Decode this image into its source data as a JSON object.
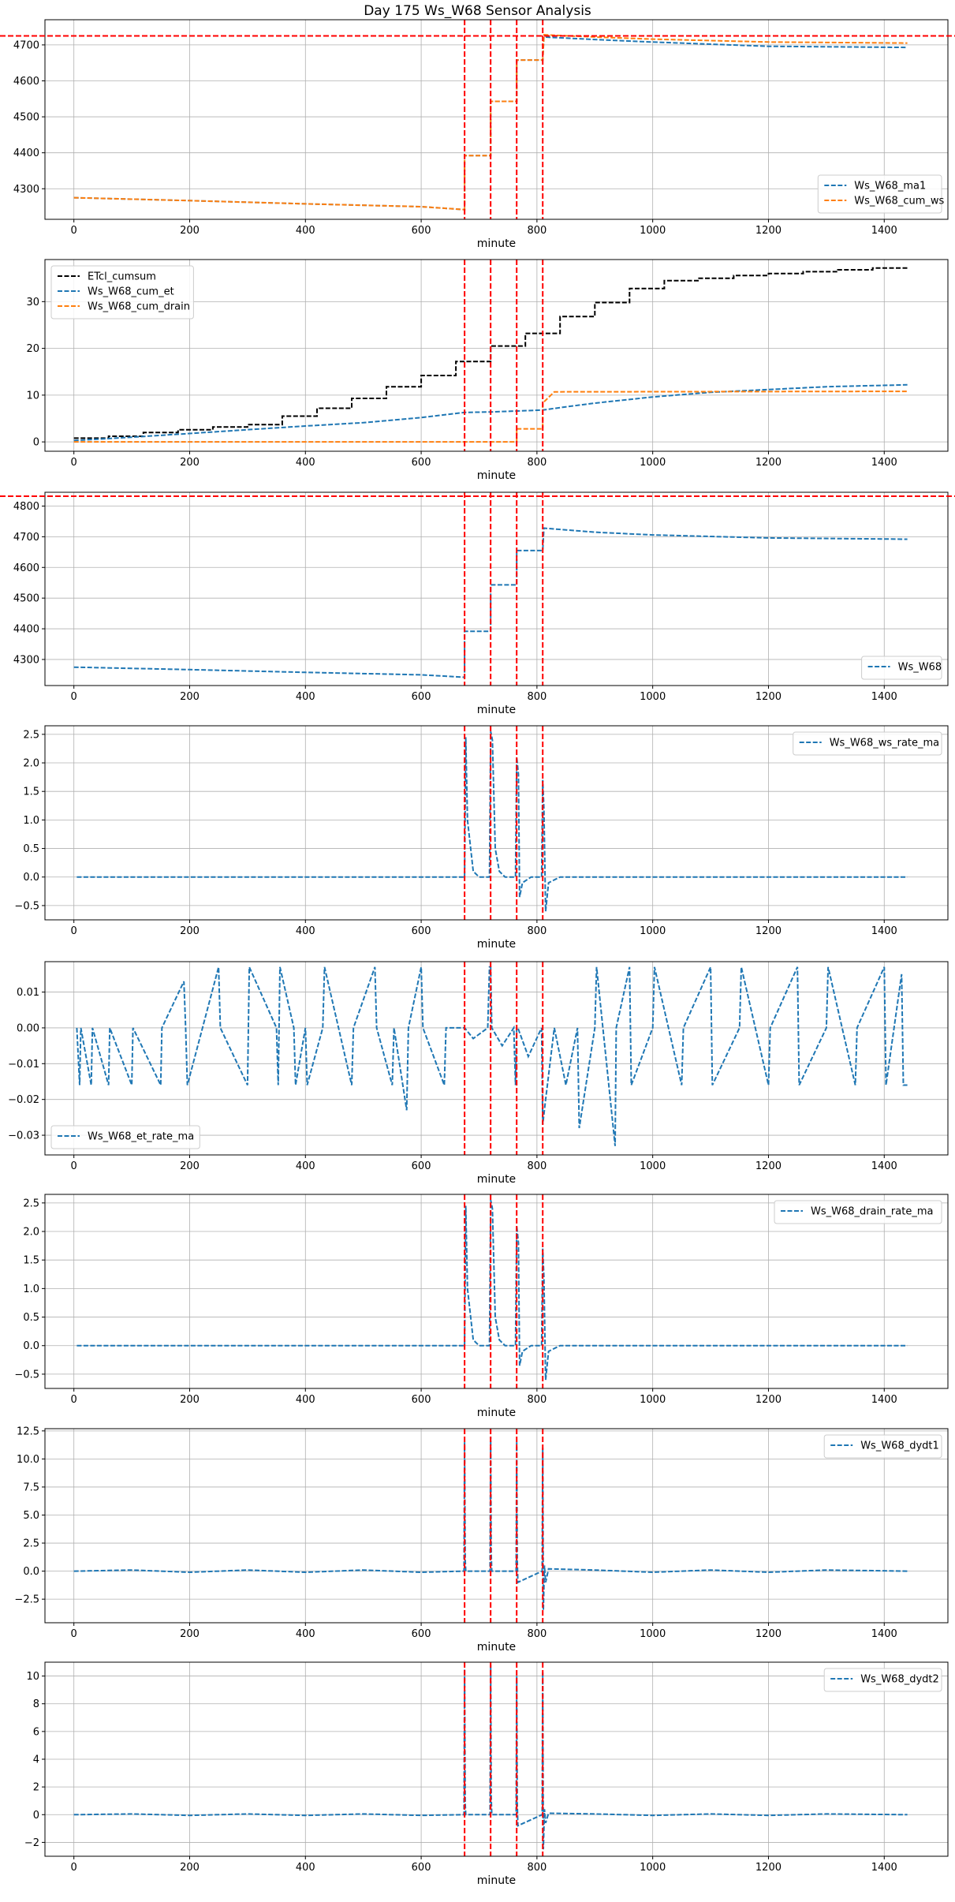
{
  "figure": {
    "title": "Day 175 Ws_W68 Sensor Analysis",
    "xlabel": "minute"
  },
  "colors": {
    "blue": "#1f77b4",
    "orange": "#ff7f0e",
    "black": "#000000",
    "red": "#ff0000",
    "grid": "#b0b0b0"
  },
  "chart_data": [
    {
      "type": "line",
      "xlabel": "minute",
      "xlim": [
        -50,
        1510
      ],
      "ylim": [
        4215,
        4770
      ],
      "xticks": [
        0,
        200,
        400,
        600,
        800,
        1000,
        1200,
        1400
      ],
      "yticks": [
        4300,
        4400,
        4500,
        4600,
        4700
      ],
      "grid": true,
      "legend": "lower-right",
      "vlines": [
        675,
        720,
        765,
        810
      ],
      "hlines": [
        4725
      ],
      "series": [
        {
          "name": "Ws_W68_ma1",
          "color": "#1f77b4",
          "style": "dashed",
          "x": [
            0,
            200,
            400,
            600,
            675,
            675,
            720,
            720,
            765,
            765,
            810,
            812,
            900,
            1000,
            1200,
            1440
          ],
          "y": [
            4275,
            4267,
            4258,
            4250,
            4242,
            4392,
            4392,
            4543,
            4543,
            4658,
            4658,
            4722,
            4715,
            4708,
            4696,
            4693
          ]
        },
        {
          "name": "Ws_W68_cum_ws",
          "color": "#ff7f0e",
          "style": "dashed",
          "x": [
            0,
            200,
            400,
            600,
            675,
            675,
            720,
            720,
            765,
            765,
            810,
            812,
            900,
            1000,
            1200,
            1440
          ],
          "y": [
            4275,
            4267,
            4258,
            4250,
            4242,
            4392,
            4392,
            4543,
            4543,
            4658,
            4658,
            4728,
            4722,
            4716,
            4708,
            4705
          ]
        }
      ]
    },
    {
      "type": "line",
      "xlabel": "minute",
      "xlim": [
        -50,
        1510
      ],
      "ylim": [
        -2,
        39
      ],
      "xticks": [
        0,
        200,
        400,
        600,
        800,
        1000,
        1200,
        1400
      ],
      "yticks": [
        0,
        10,
        20,
        30
      ],
      "grid": true,
      "legend": "upper-left",
      "vlines": [
        675,
        720,
        765,
        810
      ],
      "hlines": [],
      "series": [
        {
          "name": "ETcl_cumsum",
          "color": "#000000",
          "style": "dashed",
          "step": true,
          "x": [
            0,
            60,
            120,
            180,
            240,
            300,
            360,
            420,
            480,
            540,
            600,
            660,
            720,
            780,
            840,
            900,
            960,
            1020,
            1080,
            1140,
            1200,
            1260,
            1320,
            1380,
            1440
          ],
          "y": [
            0.8,
            1.2,
            2.0,
            2.6,
            3.2,
            3.7,
            5.5,
            7.2,
            9.3,
            11.8,
            14.2,
            17.2,
            20.5,
            23.2,
            26.8,
            29.8,
            32.8,
            34.5,
            35.0,
            35.6,
            36.0,
            36.4,
            36.8,
            37.2,
            37.5
          ]
        },
        {
          "name": "Ws_W68_cum_et",
          "color": "#1f77b4",
          "style": "dashed",
          "x": [
            0,
            100,
            200,
            300,
            400,
            500,
            600,
            675,
            720,
            765,
            810,
            850,
            900,
            1000,
            1100,
            1200,
            1300,
            1440
          ],
          "y": [
            0.3,
            1.0,
            1.8,
            2.6,
            3.4,
            4.1,
            5.2,
            6.3,
            6.4,
            6.6,
            6.8,
            7.5,
            8.3,
            9.6,
            10.6,
            11.2,
            11.8,
            12.2
          ]
        },
        {
          "name": "Ws_W68_cum_drain",
          "color": "#ff7f0e",
          "style": "dashed",
          "x": [
            0,
            675,
            675,
            720,
            720,
            765,
            765,
            810,
            810,
            830,
            1440
          ],
          "y": [
            0,
            0,
            0,
            0,
            0,
            0,
            2.8,
            2.8,
            8.3,
            10.7,
            10.8
          ]
        }
      ]
    },
    {
      "type": "line",
      "xlabel": "minute",
      "xlim": [
        -50,
        1510
      ],
      "ylim": [
        4215,
        4845
      ],
      "xticks": [
        0,
        200,
        400,
        600,
        800,
        1000,
        1200,
        1400
      ],
      "yticks": [
        4300,
        4400,
        4500,
        4600,
        4700,
        4800
      ],
      "grid": true,
      "legend": "lower-right",
      "vlines": [
        675,
        720,
        765,
        810
      ],
      "hlines": [
        4832
      ],
      "series": [
        {
          "name": "Ws_W68",
          "color": "#1f77b4",
          "style": "dashed",
          "x": [
            0,
            200,
            400,
            600,
            675,
            675,
            720,
            720,
            765,
            765,
            810,
            812,
            900,
            1000,
            1200,
            1440
          ],
          "y": [
            4275,
            4267,
            4258,
            4250,
            4242,
            4392,
            4392,
            4543,
            4543,
            4655,
            4655,
            4728,
            4715,
            4706,
            4696,
            4692
          ]
        }
      ]
    },
    {
      "type": "line",
      "xlabel": "minute",
      "xlim": [
        -50,
        1510
      ],
      "ylim": [
        -0.75,
        2.65
      ],
      "xticks": [
        0,
        200,
        400,
        600,
        800,
        1000,
        1200,
        1400
      ],
      "yticks": [
        -0.5,
        0.0,
        0.5,
        1.0,
        1.5,
        2.0,
        2.5
      ],
      "grid": true,
      "legend": "upper-right",
      "vlines": [
        675,
        720,
        765,
        810
      ],
      "hlines": [],
      "series": [
        {
          "name": "Ws_W68_ws_rate_ma",
          "color": "#1f77b4",
          "style": "dashed",
          "x": [
            5,
            675,
            677,
            680,
            690,
            700,
            718,
            720,
            723,
            728,
            735,
            745,
            763,
            765,
            768,
            770,
            775,
            790,
            808,
            810,
            812,
            815,
            820,
            840,
            1000,
            1200,
            1440
          ],
          "y": [
            0,
            0,
            2.45,
            1.0,
            0.1,
            0.0,
            0.0,
            2.55,
            2.4,
            0.5,
            0.1,
            0.0,
            0.0,
            2.1,
            1.8,
            -0.35,
            -0.1,
            0.0,
            0.0,
            1.7,
            1.2,
            -0.6,
            -0.1,
            0.0,
            0.0,
            0.0,
            0.0
          ]
        }
      ]
    },
    {
      "type": "line",
      "xlabel": "minute",
      "xlim": [
        -50,
        1510
      ],
      "ylim": [
        -0.0355,
        0.0185
      ],
      "xticks": [
        0,
        200,
        400,
        600,
        800,
        1000,
        1200,
        1400
      ],
      "yticks": [
        -0.03,
        -0.02,
        -0.01,
        0.0,
        0.01
      ],
      "grid": true,
      "legend": "lower-left",
      "vlines": [
        675,
        720,
        765,
        810
      ],
      "hlines": [],
      "series": [
        {
          "name": "Ws_W68_et_rate_ma",
          "color": "#1f77b4",
          "style": "dashed",
          "x": [
            5,
            10,
            12,
            30,
            32,
            60,
            62,
            100,
            102,
            150,
            152,
            190,
            193,
            196,
            250,
            253,
            300,
            303,
            350,
            353,
            356,
            380,
            383,
            400,
            403,
            430,
            433,
            480,
            483,
            520,
            523,
            550,
            553,
            575,
            578,
            600,
            603,
            640,
            643,
            675,
            690,
            715,
            718,
            720,
            722,
            740,
            760,
            763,
            765,
            767,
            785,
            808,
            810,
            815,
            830,
            850,
            870,
            873,
            900,
            903,
            935,
            937,
            960,
            963,
            1000,
            1003,
            1050,
            1053,
            1100,
            1103,
            1150,
            1153,
            1200,
            1203,
            1250,
            1253,
            1300,
            1303,
            1350,
            1353,
            1400,
            1403,
            1430,
            1433,
            1440
          ],
          "y": [
            0,
            -0.016,
            0,
            -0.016,
            0,
            -0.016,
            0,
            -0.016,
            0,
            -0.016,
            0,
            0.013,
            0,
            -0.016,
            0.017,
            0,
            -0.016,
            0.017,
            0,
            -0.016,
            0.017,
            0,
            -0.016,
            0,
            -0.016,
            0,
            0.017,
            -0.016,
            0,
            0.017,
            0,
            -0.016,
            0,
            -0.023,
            0,
            0.017,
            0,
            -0.016,
            0,
            0,
            -0.003,
            0,
            0.017,
            0.017,
            0,
            -0.005,
            0,
            -0.016,
            0,
            0,
            -0.008,
            0,
            -0.027,
            -0.02,
            0,
            -0.016,
            0,
            -0.028,
            0,
            0.017,
            -0.033,
            0,
            0.017,
            -0.016,
            0,
            0.017,
            -0.016,
            0,
            0.017,
            -0.016,
            0,
            0.017,
            -0.016,
            0,
            0.017,
            -0.016,
            0,
            0.017,
            -0.016,
            0,
            0.017,
            -0.016,
            0.015,
            -0.016,
            -0.016
          ]
        }
      ]
    },
    {
      "type": "line",
      "xlabel": "minute",
      "xlim": [
        -50,
        1510
      ],
      "ylim": [
        -0.75,
        2.65
      ],
      "xticks": [
        0,
        200,
        400,
        600,
        800,
        1000,
        1200,
        1400
      ],
      "yticks": [
        -0.5,
        0.0,
        0.5,
        1.0,
        1.5,
        2.0,
        2.5
      ],
      "grid": true,
      "legend": "upper-right",
      "vlines": [
        675,
        720,
        765,
        810
      ],
      "hlines": [],
      "series": [
        {
          "name": "Ws_W68_drain_rate_ma",
          "color": "#1f77b4",
          "style": "dashed",
          "x": [
            5,
            675,
            677,
            680,
            690,
            700,
            718,
            720,
            723,
            728,
            735,
            745,
            763,
            765,
            768,
            770,
            775,
            790,
            808,
            810,
            812,
            815,
            820,
            840,
            1000,
            1200,
            1440
          ],
          "y": [
            0,
            0,
            2.45,
            1.0,
            0.1,
            0.0,
            0.0,
            2.55,
            2.4,
            0.5,
            0.1,
            0.0,
            0.0,
            2.1,
            1.8,
            -0.35,
            -0.1,
            0.0,
            0.0,
            1.7,
            1.2,
            -0.6,
            -0.1,
            0.0,
            0.0,
            0.0,
            0.0
          ]
        }
      ]
    },
    {
      "type": "line",
      "xlabel": "minute",
      "xlim": [
        -50,
        1510
      ],
      "ylim": [
        -4.6,
        12.7
      ],
      "xticks": [
        0,
        200,
        400,
        600,
        800,
        1000,
        1200,
        1400
      ],
      "yticks": [
        -2.5,
        0.0,
        2.5,
        5.0,
        7.5,
        10.0,
        12.5
      ],
      "grid": true,
      "legend": "upper-right",
      "vlines": [
        675,
        720,
        765,
        810
      ],
      "hlines": [],
      "series": [
        {
          "name": "Ws_W68_dydt1",
          "color": "#1f77b4",
          "style": "dashed",
          "x": [
            0,
            100,
            200,
            300,
            400,
            500,
            600,
            674,
            675,
            676,
            677,
            719,
            720,
            721,
            722,
            764,
            765,
            766,
            767,
            809,
            810,
            811,
            813,
            815,
            820,
            900,
            1000,
            1100,
            1200,
            1300,
            1440
          ],
          "y": [
            0,
            0.1,
            -0.1,
            0.1,
            -0.1,
            0.1,
            -0.1,
            0,
            11.5,
            1.0,
            0,
            0,
            12.0,
            1.5,
            0,
            0,
            11.5,
            1.0,
            -1.0,
            0,
            11.0,
            -3.5,
            0.5,
            -1.0,
            0.2,
            0.1,
            -0.1,
            0.1,
            -0.1,
            0.1,
            0
          ]
        }
      ]
    },
    {
      "type": "line",
      "xlabel": "minute",
      "xlim": [
        -50,
        1510
      ],
      "ylim": [
        -3.0,
        11.0
      ],
      "xticks": [
        0,
        200,
        400,
        600,
        800,
        1000,
        1200,
        1400
      ],
      "yticks": [
        -2,
        0,
        2,
        4,
        6,
        8,
        10
      ],
      "grid": true,
      "legend": "upper-right",
      "vlines": [
        675,
        720,
        765,
        810
      ],
      "hlines": [],
      "series": [
        {
          "name": "Ws_W68_dydt2",
          "color": "#1f77b4",
          "style": "dashed",
          "x": [
            0,
            100,
            200,
            300,
            400,
            500,
            600,
            674,
            675,
            676,
            677,
            719,
            720,
            721,
            722,
            764,
            765,
            766,
            767,
            809,
            810,
            811,
            813,
            815,
            820,
            900,
            1000,
            1100,
            1200,
            1300,
            1440
          ],
          "y": [
            0,
            0.05,
            -0.05,
            0.05,
            -0.05,
            0.05,
            -0.05,
            0,
            10.5,
            0.8,
            0,
            0,
            10.8,
            1.2,
            0,
            0,
            10.0,
            0.8,
            -0.8,
            0,
            10.3,
            -2.5,
            0.4,
            -0.6,
            0.1,
            0.05,
            -0.05,
            0.05,
            -0.05,
            0.05,
            0
          ]
        }
      ]
    }
  ]
}
